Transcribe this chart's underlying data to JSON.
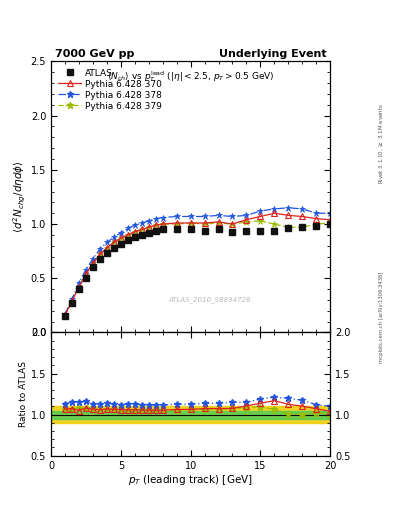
{
  "title_left": "7000 GeV pp",
  "title_right": "Underlying Event",
  "ylabel_main": "$\\langle d^2 N_{chg}/d\\eta d\\phi\\rangle$",
  "ylabel_ratio": "Ratio to ATLAS",
  "xlabel": "$p_T$ (leading track) [GeV]",
  "right_label": "mcplots.cern.ch [arXiv:1306.3436]",
  "right_label2": "Rivet 3.1.10, $\\geq$ 3.1M events",
  "watermark": "ATLAS_2010_S8894728",
  "xlim": [
    0,
    20
  ],
  "ylim_main": [
    0,
    2.5
  ],
  "ylim_ratio": [
    0.5,
    2.0
  ],
  "atlas_x": [
    1.0,
    1.5,
    2.0,
    2.5,
    3.0,
    3.5,
    4.0,
    4.5,
    5.0,
    5.5,
    6.0,
    6.5,
    7.0,
    7.5,
    8.0,
    9.0,
    10.0,
    11.0,
    12.0,
    13.0,
    14.0,
    15.0,
    16.0,
    17.0,
    18.0,
    19.0,
    20.0
  ],
  "atlas_y": [
    0.15,
    0.27,
    0.4,
    0.5,
    0.6,
    0.68,
    0.73,
    0.78,
    0.82,
    0.85,
    0.88,
    0.9,
    0.92,
    0.94,
    0.95,
    0.95,
    0.95,
    0.94,
    0.95,
    0.93,
    0.94,
    0.94,
    0.94,
    0.96,
    0.97,
    0.98,
    1.0
  ],
  "atlas_yerr": [
    0.01,
    0.01,
    0.01,
    0.01,
    0.01,
    0.01,
    0.01,
    0.01,
    0.01,
    0.01,
    0.01,
    0.01,
    0.01,
    0.01,
    0.01,
    0.01,
    0.01,
    0.01,
    0.01,
    0.01,
    0.01,
    0.01,
    0.01,
    0.01,
    0.01,
    0.01,
    0.01
  ],
  "py370_x": [
    1.0,
    1.5,
    2.0,
    2.5,
    3.0,
    3.5,
    4.0,
    4.5,
    5.0,
    5.5,
    6.0,
    6.5,
    7.0,
    7.5,
    8.0,
    9.0,
    10.0,
    11.0,
    12.0,
    13.0,
    14.0,
    15.0,
    16.0,
    17.0,
    18.0,
    19.0,
    20.0
  ],
  "py370_y": [
    0.16,
    0.29,
    0.42,
    0.54,
    0.64,
    0.72,
    0.78,
    0.83,
    0.87,
    0.9,
    0.93,
    0.95,
    0.97,
    0.99,
    1.0,
    1.01,
    1.01,
    1.01,
    1.02,
    1.0,
    1.04,
    1.07,
    1.1,
    1.08,
    1.07,
    1.05,
    1.04
  ],
  "py378_x": [
    1.0,
    1.5,
    2.0,
    2.5,
    3.0,
    3.5,
    4.0,
    4.5,
    5.0,
    5.5,
    6.0,
    6.5,
    7.0,
    7.5,
    8.0,
    9.0,
    10.0,
    11.0,
    12.0,
    13.0,
    14.0,
    15.0,
    16.0,
    17.0,
    18.0,
    19.0,
    20.0
  ],
  "py378_y": [
    0.17,
    0.31,
    0.46,
    0.58,
    0.68,
    0.77,
    0.83,
    0.88,
    0.92,
    0.96,
    0.99,
    1.01,
    1.03,
    1.05,
    1.06,
    1.07,
    1.07,
    1.07,
    1.08,
    1.07,
    1.08,
    1.12,
    1.14,
    1.15,
    1.14,
    1.1,
    1.1
  ],
  "py379_x": [
    1.0,
    1.5,
    2.0,
    2.5,
    3.0,
    3.5,
    4.0,
    4.5,
    5.0,
    5.5,
    6.0,
    6.5,
    7.0,
    7.5,
    8.0,
    9.0,
    10.0,
    11.0,
    12.0,
    13.0,
    14.0,
    15.0,
    16.0,
    17.0,
    18.0,
    19.0,
    20.0
  ],
  "py379_y": [
    0.16,
    0.29,
    0.43,
    0.54,
    0.64,
    0.72,
    0.78,
    0.83,
    0.87,
    0.9,
    0.93,
    0.95,
    0.97,
    0.99,
    1.0,
    1.0,
    1.01,
    1.0,
    1.01,
    1.0,
    1.02,
    1.03,
    1.0,
    0.97,
    0.97,
    1.0,
    1.01
  ],
  "atlas_color": "#111111",
  "py370_color": "#dd2222",
  "py378_color": "#2255dd",
  "py379_color": "#99bb00",
  "band_color_yellow": "#eecc00",
  "band_color_green": "#55cc55",
  "ratio_band_outer": 0.1,
  "ratio_band_inner": 0.05
}
